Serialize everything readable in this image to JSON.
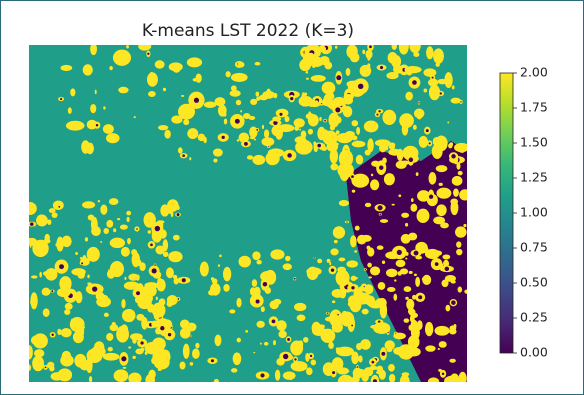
{
  "chart_data": {
    "type": "heatmap",
    "title": "K-means LST 2022 (K=3)",
    "colormap": "viridis",
    "clim": [
      0,
      2
    ],
    "colorbar_ticks": [
      {
        "value": 0,
        "label": "0.00"
      },
      {
        "value": 0.25,
        "label": "0.25"
      },
      {
        "value": 0.5,
        "label": "0.50"
      },
      {
        "value": 0.75,
        "label": "0.75"
      },
      {
        "value": 1,
        "label": "1.00"
      },
      {
        "value": 1.25,
        "label": "1.25"
      },
      {
        "value": 1.5,
        "label": "1.50"
      },
      {
        "value": 1.75,
        "label": "1.75"
      },
      {
        "value": 2,
        "label": "2.00"
      }
    ]
  }
}
